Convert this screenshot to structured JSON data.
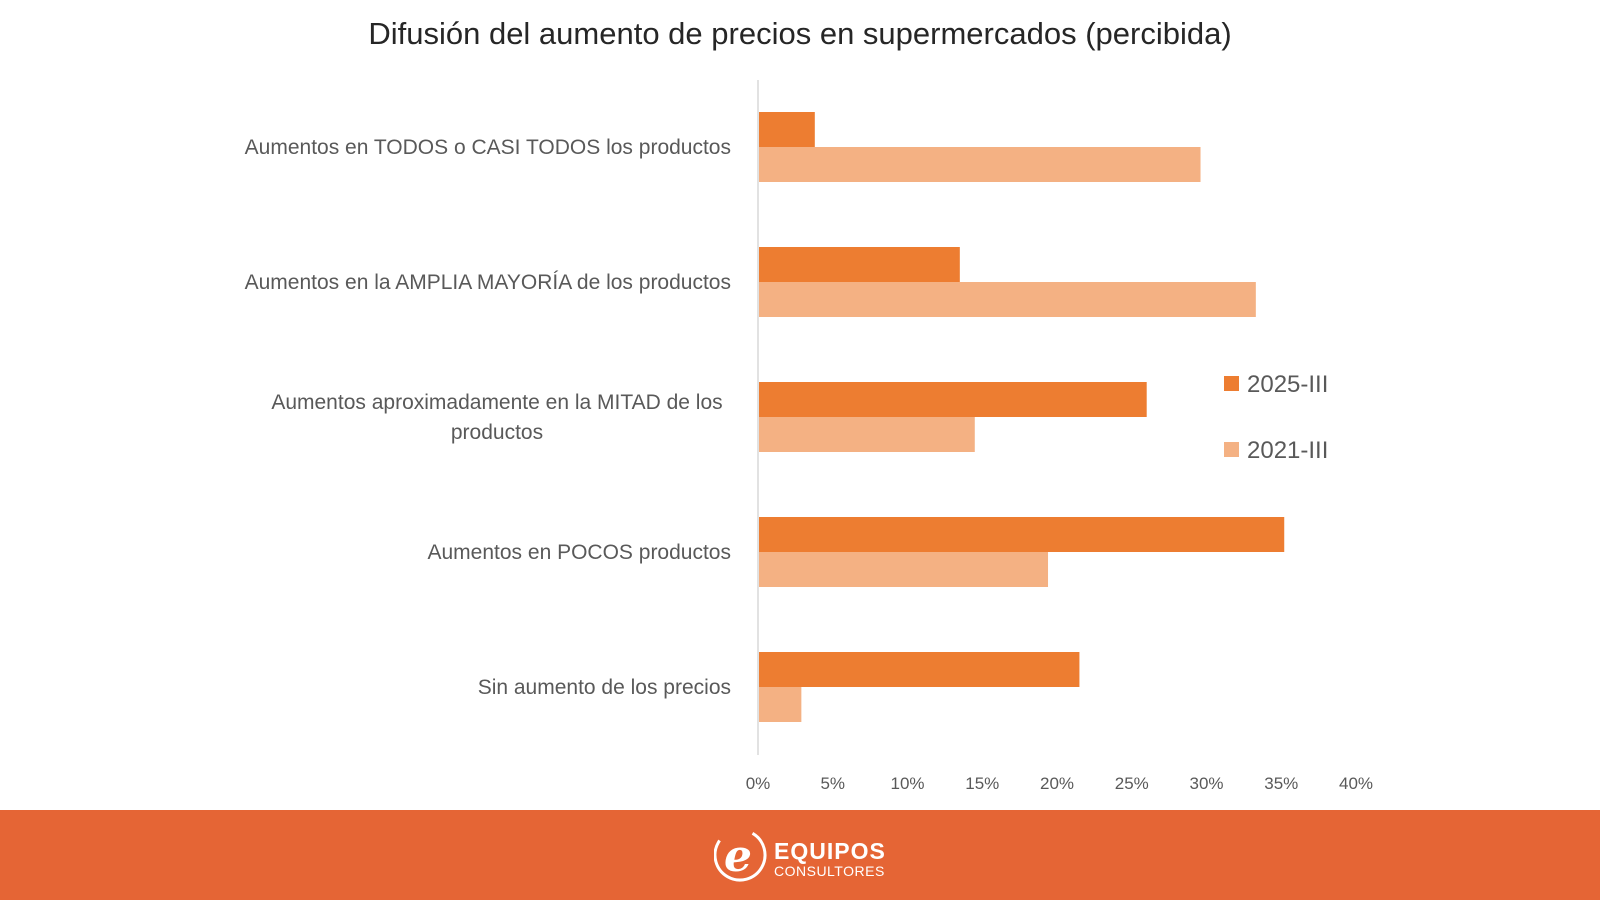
{
  "colors": {
    "series_2025": "#ed7d31",
    "series_2021": "#f4b183",
    "footer": "#e56535",
    "axis": "#d9d9d9"
  },
  "chart_data": {
    "type": "bar",
    "orientation": "horizontal",
    "title": "Difusión del aumento de precios en supermercados (percibida)",
    "categories": [
      [
        "Aumentos en TODOS o CASI TODOS los productos"
      ],
      [
        "Aumentos en la AMPLIA MAYORÍA de los productos"
      ],
      [
        "Aumentos aproximadamente en la MITAD de los",
        "productos"
      ],
      [
        "Aumentos en POCOS productos"
      ],
      [
        "Sin aumento de los precios"
      ]
    ],
    "series": [
      {
        "name": "2025-III",
        "values": [
          3.8,
          13.5,
          26.0,
          35.2,
          21.5
        ]
      },
      {
        "name": "2021-III",
        "values": [
          29.6,
          33.3,
          14.5,
          19.4,
          2.9
        ]
      }
    ],
    "xlim": [
      0,
      40
    ],
    "ticks": [
      "0%",
      "5%",
      "10%",
      "15%",
      "20%",
      "25%",
      "30%",
      "35%",
      "40%"
    ],
    "legend_position": "right"
  },
  "footer": {
    "logo_letter": "e",
    "brand_name": "EQUIPOS",
    "brand_sub": "CONSULTORES"
  }
}
